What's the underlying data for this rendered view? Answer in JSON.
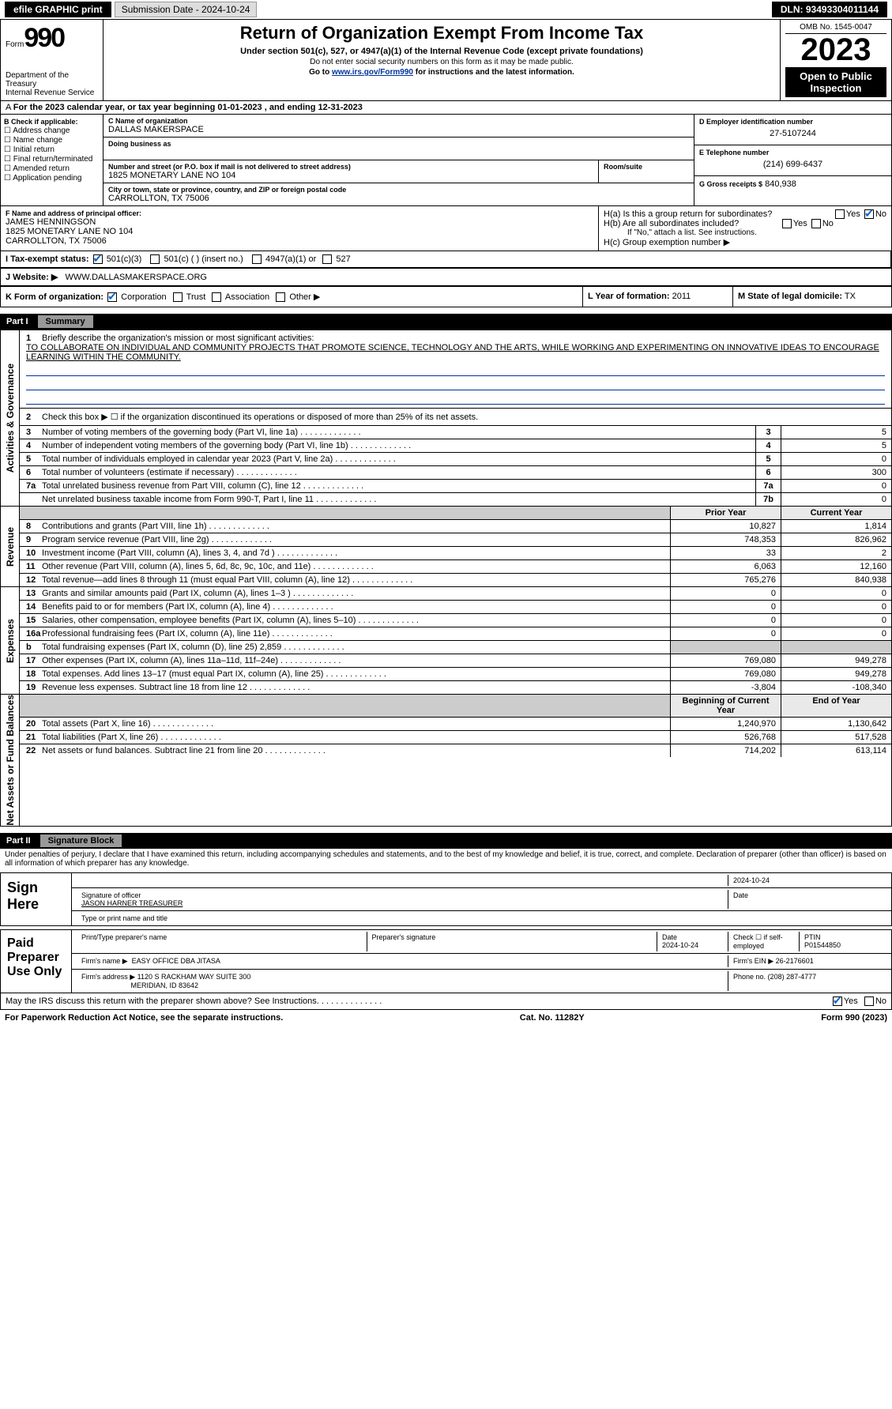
{
  "top": {
    "efile_btn": "efile GRAPHIC print",
    "sub_label": "Submission Date - 2024-10-24",
    "dln_label": "DLN: 93493304011144"
  },
  "header": {
    "form_prefix": "Form",
    "form_num": "990",
    "dept": "Department of the Treasury",
    "irs": "Internal Revenue Service",
    "title": "Return of Organization Exempt From Income Tax",
    "sub1": "Under section 501(c), 527, or 4947(a)(1) of the Internal Revenue Code (except private foundations)",
    "sub2": "Do not enter social security numbers on this form as it may be made public.",
    "sub3_pre": "Go to ",
    "sub3_link": "www.irs.gov/Form990",
    "sub3_post": " for instructions and the latest information.",
    "omb": "OMB No. 1545-0047",
    "year": "2023",
    "open": "Open to Public Inspection"
  },
  "a_line": "For the 2023 calendar year, or tax year beginning 01-01-2023    , and ending 12-31-2023",
  "b": {
    "hdr": "B Check if applicable:",
    "opts": [
      "☐ Address change",
      "☐ Name change",
      "☐ Initial return",
      "☐ Final return/terminated",
      "☐ Amended return",
      "☐ Application pending"
    ]
  },
  "c": {
    "name_lbl": "C Name of organization",
    "name": "DALLAS MAKERSPACE",
    "dba_lbl": "Doing business as",
    "addr_lbl": "Number and street (or P.O. box if mail is not delivered to street address)",
    "addr": "1825 MONETARY LANE NO 104",
    "suite_lbl": "Room/suite",
    "city_lbl": "City or town, state or province, country, and ZIP or foreign postal code",
    "city": "CARROLLTON, TX  75006"
  },
  "d": {
    "ein_lbl": "D Employer identification number",
    "ein": "27-5107244",
    "phone_lbl": "E Telephone number",
    "phone": "(214) 699-6437",
    "gross_lbl": "G Gross receipts $",
    "gross": "840,938"
  },
  "f": {
    "lbl": "F  Name and address of principal officer:",
    "name": "JAMES HENNINGSON",
    "addr1": "1825 MONETARY LANE NO 104",
    "addr2": "CARROLLTON, TX  75006"
  },
  "h": {
    "a": "H(a)  Is this a group return for subordinates?",
    "b": "H(b)  Are all subordinates included?",
    "note": "If \"No,\" attach a list. See instructions.",
    "c": "H(c)  Group exemption number  ▶",
    "yes": "Yes",
    "no": "No"
  },
  "i": {
    "lbl": "I     Tax-exempt status:",
    "o1": "501(c)(3)",
    "o2": "501(c) (  ) (insert no.)",
    "o3": "4947(a)(1) or",
    "o4": "527"
  },
  "j": {
    "lbl": "J    Website:  ▶",
    "val": "WWW.DALLASMAKERSPACE.ORG"
  },
  "k": {
    "lbl": "K Form of organization:",
    "o1": "Corporation",
    "o2": "Trust",
    "o3": "Association",
    "o4": "Other ▶"
  },
  "l": {
    "lbl": "L Year of formation:",
    "val": "2011"
  },
  "m": {
    "lbl": "M State of legal domicile:",
    "val": "TX"
  },
  "part1": {
    "pt": "Part I",
    "ttl": "Summary"
  },
  "tabs": {
    "gov": "Activities & Governance",
    "rev": "Revenue",
    "exp": "Expenses",
    "net": "Net Assets or Fund Balances"
  },
  "l1": {
    "lbl": "Briefly describe the organization's mission or most significant activities:",
    "txt": "TO COLLABORATE ON INDIVIDUAL AND COMMUNITY PROJECTS THAT PROMOTE SCIENCE, TECHNOLOGY AND THE ARTS, WHILE WORKING AND EXPERIMENTING ON INNOVATIVE IDEAS TO ENCOURAGE LEARNING WITHIN THE COMMUNITY."
  },
  "l2": "Check this box ▶ ☐ if the organization discontinued its operations or disposed of more than 25% of its net assets.",
  "gov_rows": [
    {
      "n": "3",
      "lbl": "Number of voting members of the governing body (Part VI, line 1a)",
      "c": "3",
      "v": "5"
    },
    {
      "n": "4",
      "lbl": "Number of independent voting members of the governing body (Part VI, line 1b)",
      "c": "4",
      "v": "5"
    },
    {
      "n": "5",
      "lbl": "Total number of individuals employed in calendar year 2023 (Part V, line 2a)",
      "c": "5",
      "v": "0"
    },
    {
      "n": "6",
      "lbl": "Total number of volunteers (estimate if necessary)",
      "c": "6",
      "v": "300"
    },
    {
      "n": "7a",
      "lbl": "Total unrelated business revenue from Part VIII, column (C), line 12",
      "c": "7a",
      "v": "0"
    },
    {
      "n": "",
      "lbl": "Net unrelated business taxable income from Form 990-T, Part I, line 11",
      "c": "7b",
      "v": "0"
    }
  ],
  "yr_hdr": {
    "prior": "Prior Year",
    "curr": "Current Year"
  },
  "rev_rows": [
    {
      "n": "8",
      "lbl": "Contributions and grants (Part VIII, line 1h)",
      "p": "10,827",
      "c": "1,814"
    },
    {
      "n": "9",
      "lbl": "Program service revenue (Part VIII, line 2g)",
      "p": "748,353",
      "c": "826,962"
    },
    {
      "n": "10",
      "lbl": "Investment income (Part VIII, column (A), lines 3, 4, and 7d )",
      "p": "33",
      "c": "2"
    },
    {
      "n": "11",
      "lbl": "Other revenue (Part VIII, column (A), lines 5, 6d, 8c, 9c, 10c, and 11e)",
      "p": "6,063",
      "c": "12,160"
    },
    {
      "n": "12",
      "lbl": "Total revenue—add lines 8 through 11 (must equal Part VIII, column (A), line 12)",
      "p": "765,276",
      "c": "840,938"
    }
  ],
  "exp_rows": [
    {
      "n": "13",
      "lbl": "Grants and similar amounts paid (Part IX, column (A), lines 1–3 )",
      "p": "0",
      "c": "0"
    },
    {
      "n": "14",
      "lbl": "Benefits paid to or for members (Part IX, column (A), line 4)",
      "p": "0",
      "c": "0"
    },
    {
      "n": "15",
      "lbl": "Salaries, other compensation, employee benefits (Part IX, column (A), lines 5–10)",
      "p": "0",
      "c": "0"
    },
    {
      "n": "16a",
      "lbl": "Professional fundraising fees (Part IX, column (A), line 11e)",
      "p": "0",
      "c": "0"
    },
    {
      "n": "b",
      "lbl": "Total fundraising expenses (Part IX, column (D), line 25) 2,859",
      "p": "",
      "c": "",
      "blank": true
    },
    {
      "n": "17",
      "lbl": "Other expenses (Part IX, column (A), lines 11a–11d, 11f–24e)",
      "p": "769,080",
      "c": "949,278"
    },
    {
      "n": "18",
      "lbl": "Total expenses. Add lines 13–17 (must equal Part IX, column (A), line 25)",
      "p": "769,080",
      "c": "949,278"
    },
    {
      "n": "19",
      "lbl": "Revenue less expenses. Subtract line 18 from line 12",
      "p": "-3,804",
      "c": "-108,340"
    }
  ],
  "net_hdr": {
    "beg": "Beginning of Current Year",
    "end": "End of Year"
  },
  "net_rows": [
    {
      "n": "20",
      "lbl": "Total assets (Part X, line 16)",
      "p": "1,240,970",
      "c": "1,130,642"
    },
    {
      "n": "21",
      "lbl": "Total liabilities (Part X, line 26)",
      "p": "526,768",
      "c": "517,528"
    },
    {
      "n": "22",
      "lbl": "Net assets or fund balances. Subtract line 21 from line 20",
      "p": "714,202",
      "c": "613,114"
    }
  ],
  "part2": {
    "pt": "Part II",
    "ttl": "Signature Block"
  },
  "perjury": "Under penalties of perjury, I declare that I have examined this return, including accompanying schedules and statements, and to the best of my knowledge and belief, it is true, correct, and complete. Declaration of preparer (other than officer) is based on all information of which preparer has any knowledge.",
  "sign": {
    "here": "Sign Here",
    "sig_lbl": "Signature of officer",
    "date": "2024-10-24",
    "date_lbl": "Date",
    "name": "JASON HARNER  TREASURER",
    "name_lbl": "Type or print name and title"
  },
  "paid": {
    "hdr": "Paid Preparer Use Only",
    "pn_lbl": "Print/Type preparer's name",
    "ps_lbl": "Preparer's signature",
    "d_lbl": "Date",
    "d": "2024-10-24",
    "chk_lbl": "Check ☐ if self-employed",
    "ptin_lbl": "PTIN",
    "ptin": "P01544850",
    "firm_lbl": "Firm's name    ▶",
    "firm": "EASY OFFICE DBA JITASA",
    "ein_lbl": "Firm's EIN ▶",
    "ein": "26-2176601",
    "addr_lbl": "Firm's address ▶",
    "addr1": "1120 S RACKHAM WAY SUITE 300",
    "addr2": "MERIDIAN, ID  83642",
    "ph_lbl": "Phone no.",
    "ph": "(208) 287-4777"
  },
  "discuss": "May the IRS discuss this return with the preparer shown above? See Instructions.",
  "footer": {
    "l": "For Paperwork Reduction Act Notice, see the separate instructions.",
    "m": "Cat. No. 11282Y",
    "r": "Form 990 (2023)"
  }
}
